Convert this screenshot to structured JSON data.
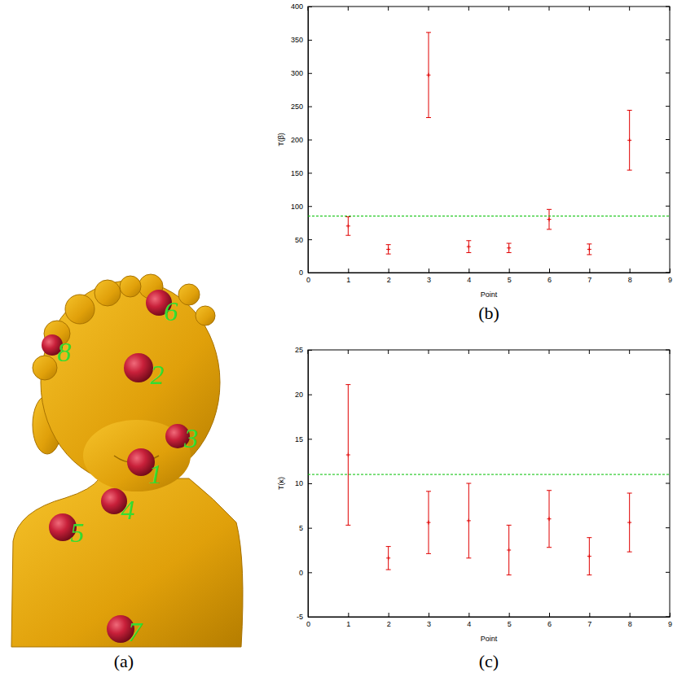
{
  "chart_data": [
    {
      "type": "scatter",
      "label": "(b)",
      "x_label": "Point",
      "y_label": "T(β)",
      "xlim": [
        0,
        9
      ],
      "xticks": [
        0,
        1,
        2,
        3,
        4,
        5,
        6,
        7,
        8,
        9
      ],
      "ylim": [
        0,
        400
      ],
      "yticks": [
        0,
        50,
        100,
        150,
        200,
        250,
        300,
        350,
        400
      ],
      "series": [
        {
          "type": "scatter",
          "color": "#e00000",
          "marker": "plus",
          "x": [
            1,
            2,
            3,
            4,
            5,
            6,
            7,
            8
          ],
          "values": [
            70,
            35,
            297,
            39,
            37,
            80,
            35,
            199
          ],
          "errors": [
            14,
            7,
            64,
            9,
            7,
            15,
            8,
            45
          ]
        },
        {
          "type": "line",
          "color": "#00c000",
          "line_style": "dashed",
          "x": [
            0,
            9
          ],
          "values": [
            85,
            85
          ]
        }
      ]
    },
    {
      "type": "scatter",
      "label": "(c)",
      "x_label": "Point",
      "y_label": "T(κ)",
      "xlim": [
        0,
        9
      ],
      "xticks": [
        0,
        1,
        2,
        3,
        4,
        5,
        6,
        7,
        8,
        9
      ],
      "ylim": [
        -5,
        25
      ],
      "yticks": [
        -5,
        0,
        5,
        10,
        15,
        20,
        25
      ],
      "series": [
        {
          "type": "scatter",
          "color": "#e00000",
          "marker": "plus",
          "x": [
            1,
            2,
            3,
            4,
            5,
            6,
            7,
            8
          ],
          "values": [
            13.2,
            1.6,
            5.6,
            5.8,
            2.5,
            6.0,
            1.8,
            5.6
          ],
          "errors": [
            7.9,
            1.3,
            3.5,
            4.2,
            2.8,
            3.2,
            2.1,
            3.3
          ]
        },
        {
          "type": "line",
          "color": "#00c000",
          "line_style": "dashed",
          "x": [
            0,
            9
          ],
          "values": [
            11,
            11
          ]
        }
      ]
    }
  ],
  "image_panel": {
    "label": "(a)",
    "point_labels": [
      "1",
      "2",
      "3",
      "4",
      "5",
      "6",
      "7",
      "8"
    ]
  }
}
